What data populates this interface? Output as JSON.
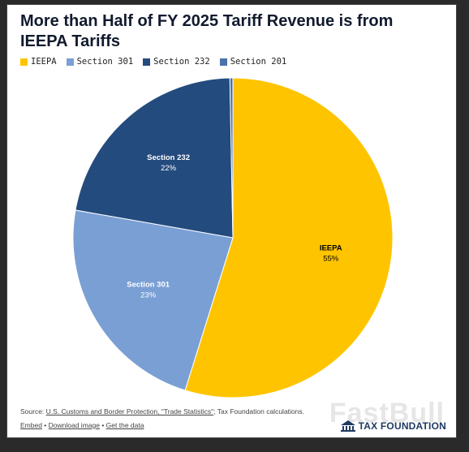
{
  "chart_data": {
    "type": "pie",
    "title": "More than Half of FY 2025 Tariff Revenue is from IEEPA Tariffs",
    "legend_position": "top-left",
    "slices": [
      {
        "name": "IEEPA",
        "value": 55,
        "label": "55%",
        "color": "#FFC400",
        "text_color": "#000000"
      },
      {
        "name": "Section 301",
        "value": 23,
        "label": "23%",
        "color": "#7A9FD4",
        "text_color": "#ffffff"
      },
      {
        "name": "Section 232",
        "value": 22,
        "label": "22%",
        "color": "#244B7E",
        "text_color": "#ffffff"
      },
      {
        "name": "Section 201",
        "value": 0.3,
        "label": "",
        "color": "#4C72A8",
        "text_color": "#ffffff"
      }
    ],
    "legend": [
      "IEEPA",
      "Section 301",
      "Section 232",
      "Section 201"
    ]
  },
  "footer": {
    "source_prefix": "Source: ",
    "source_link": "U.S. Customs and Border Protection, \"Trade Statistics\"",
    "source_suffix": "; Tax Foundation calculations.",
    "embed": "Embed",
    "download": "Download image",
    "get_data": "Get the data",
    "separator": " • "
  },
  "logo": {
    "text": "TAX FOUNDATION",
    "icon": "tax-foundation-logo-icon"
  },
  "watermark": "FastBull"
}
